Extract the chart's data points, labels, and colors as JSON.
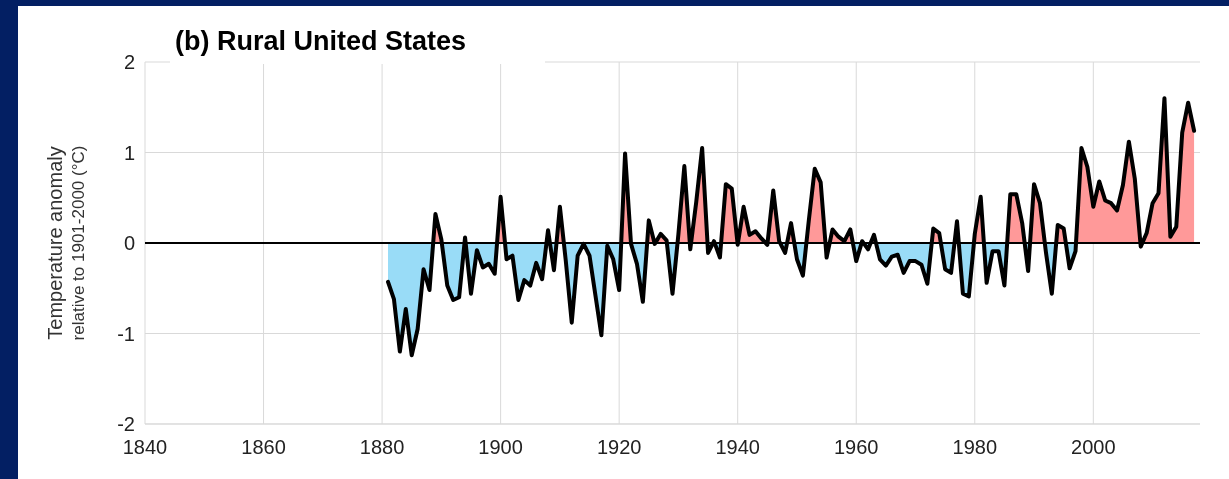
{
  "chart_data": {
    "type": "area",
    "title": "(b) Rural United States",
    "ylabel": "Temperature anomaly\nrelative to 1901-2000 (°C)",
    "xlim": [
      1840,
      2018
    ],
    "xticks": [
      1840,
      1860,
      1880,
      1900,
      1920,
      1940,
      1960,
      1980,
      2000
    ],
    "ylim": [
      -2,
      2
    ],
    "yticks": [
      -2,
      -1,
      0,
      1,
      2
    ],
    "grid": true,
    "ref_lines": [
      {
        "axis": "y",
        "value": 0,
        "color": "#000000"
      }
    ],
    "series": [
      {
        "color": "#000000",
        "colors": [
          "#99dcf7",
          "#99dcf7",
          "#99dcf7",
          "#99dcf7",
          "#99dcf7",
          "#99dcf7",
          "#99dcf7",
          "#99dcf7",
          "#ff9999",
          "#ff9999",
          "#99dcf7",
          "#99dcf7",
          "#99dcf7",
          "#ff9999",
          "#99dcf7",
          "#99dcf7",
          "#99dcf7",
          "#99dcf7",
          "#99dcf7",
          "#ff9999",
          "#99dcf7",
          "#99dcf7",
          "#99dcf7",
          "#99dcf7",
          "#99dcf7",
          "#99dcf7",
          "#99dcf7",
          "#ff9999",
          "#99dcf7",
          "#ff9999",
          "#99dcf7",
          "#99dcf7",
          "#99dcf7",
          "#99dcf7",
          "#99dcf7",
          "#99dcf7",
          "#99dcf7",
          "#99dcf7",
          "#99dcf7",
          "#99dcf7",
          "#ff9999",
          "#99dcf7",
          "#99dcf7",
          "#99dcf7",
          "#ff9999",
          "#99dcf7",
          "#ff9999",
          "#ff9999",
          "#99dcf7",
          "#ff9999",
          "#ff9999",
          "#99dcf7",
          "#ff9999",
          "#ff9999",
          "#99dcf7",
          "#ff9999",
          "#99dcf7",
          "#ff9999",
          "#ff9999",
          "#99dcf7",
          "#ff9999",
          "#ff9999",
          "#ff9999",
          "#ff9999",
          "#99dcf7",
          "#ff9999",
          "#ff9999",
          "#99dcf7",
          "#ff9999",
          "#99dcf7",
          "#99dcf7",
          "#ff9999",
          "#ff9999",
          "#ff9999",
          "#99dcf7",
          "#ff9999",
          "#ff9999",
          "#ff9999",
          "#ff9999",
          "#99dcf7",
          "#ff9999",
          "#99dcf7",
          "#ff9999",
          "#99dcf7",
          "#99dcf7",
          "#99dcf7",
          "#99dcf7",
          "#99dcf7",
          "#99dcf7",
          "#99dcf7",
          "#99dcf7",
          "#99dcf7",
          "#ff9999",
          "#ff9999",
          "#99dcf7",
          "#99dcf7",
          "#ff9999",
          "#99dcf7",
          "#99dcf7",
          "#ff9999",
          "#ff9999",
          "#99dcf7",
          "#99dcf7",
          "#99dcf7",
          "#99dcf7",
          "#ff9999",
          "#ff9999",
          "#ff9999",
          "#99dcf7",
          "#ff9999",
          "#ff9999",
          "#99dcf7",
          "#99dcf7",
          "#ff9999",
          "#ff9999",
          "#99dcf7",
          "#99dcf7",
          "#ff9999",
          "#ff9999",
          "#ff9999",
          "#ff9999",
          "#ff9999",
          "#ff9999",
          "#ff9999",
          "#ff9999",
          "#ff9999",
          "#ff9999",
          "#99dcf7",
          "#ff9999",
          "#ff9999",
          "#ff9999",
          "#ff9999",
          "#ff9999",
          "#ff9999",
          "#ff9999",
          "#ff9999",
          "#ff9999"
        ],
        "x": [
          1881,
          1882,
          1883,
          1884,
          1885,
          1886,
          1887,
          1888,
          1889,
          1890,
          1891,
          1892,
          1893,
          1894,
          1895,
          1896,
          1897,
          1898,
          1899,
          1900,
          1901,
          1902,
          1903,
          1904,
          1905,
          1906,
          1907,
          1908,
          1909,
          1910,
          1911,
          1912,
          1913,
          1914,
          1915,
          1916,
          1917,
          1918,
          1919,
          1920,
          1921,
          1922,
          1923,
          1924,
          1925,
          1926,
          1927,
          1928,
          1929,
          1930,
          1931,
          1932,
          1933,
          1934,
          1935,
          1936,
          1937,
          1938,
          1939,
          1940,
          1941,
          1942,
          1943,
          1944,
          1945,
          1946,
          1947,
          1948,
          1949,
          1950,
          1951,
          1952,
          1953,
          1954,
          1955,
          1956,
          1957,
          1958,
          1959,
          1960,
          1961,
          1962,
          1963,
          1964,
          1965,
          1966,
          1967,
          1968,
          1969,
          1970,
          1971,
          1972,
          1973,
          1974,
          1975,
          1976,
          1977,
          1978,
          1979,
          1980,
          1981,
          1982,
          1983,
          1984,
          1985,
          1986,
          1987,
          1988,
          1989,
          1990,
          1991,
          1992,
          1993,
          1994,
          1995,
          1996,
          1997,
          1998,
          1999,
          2000,
          2001,
          2002,
          2003,
          2004,
          2005,
          2006,
          2007,
          2008,
          2009,
          2010,
          2011,
          2012,
          2013,
          2014,
          2015,
          2016,
          2017
        ],
        "values": [
          -0.43,
          -0.62,
          -1.2,
          -0.73,
          -1.24,
          -0.95,
          -0.29,
          -0.52,
          0.32,
          0.04,
          -0.47,
          -0.63,
          -0.6,
          0.06,
          -0.56,
          -0.08,
          -0.27,
          -0.23,
          -0.34,
          0.51,
          -0.18,
          -0.14,
          -0.63,
          -0.41,
          -0.47,
          -0.22,
          -0.4,
          0.14,
          -0.3,
          0.4,
          -0.2,
          -0.88,
          -0.14,
          -0.01,
          -0.14,
          -0.58,
          -1.02,
          -0.03,
          -0.18,
          -0.52,
          0.99,
          -0.01,
          -0.23,
          -0.65,
          0.25,
          -0.01,
          0.1,
          0.03,
          -0.56,
          0.1,
          0.85,
          -0.07,
          0.45,
          1.05,
          -0.11,
          0.02,
          -0.16,
          0.65,
          0.6,
          -0.02,
          0.4,
          0.09,
          0.13,
          0.05,
          -0.02,
          0.58,
          0.02,
          -0.11,
          0.22,
          -0.18,
          -0.36,
          0.25,
          0.82,
          0.67,
          -0.16,
          0.15,
          0.07,
          0.02,
          0.15,
          -0.2,
          0.02,
          -0.07,
          0.09,
          -0.18,
          -0.25,
          -0.15,
          -0.13,
          -0.33,
          -0.2,
          -0.2,
          -0.24,
          -0.45,
          0.16,
          0.11,
          -0.29,
          -0.33,
          0.24,
          -0.56,
          -0.59,
          0.1,
          0.51,
          -0.44,
          -0.09,
          -0.09,
          -0.47,
          0.54,
          0.54,
          0.22,
          -0.31,
          0.65,
          0.44,
          -0.1,
          -0.56,
          0.2,
          0.16,
          -0.28,
          -0.09,
          1.05,
          0.84,
          0.4,
          0.68,
          0.47,
          0.44,
          0.36,
          0.64,
          1.12,
          0.71,
          -0.04,
          0.11,
          0.44,
          0.55,
          1.6,
          0.07,
          0.18,
          1.22,
          1.55,
          1.24
        ]
      }
    ]
  }
}
